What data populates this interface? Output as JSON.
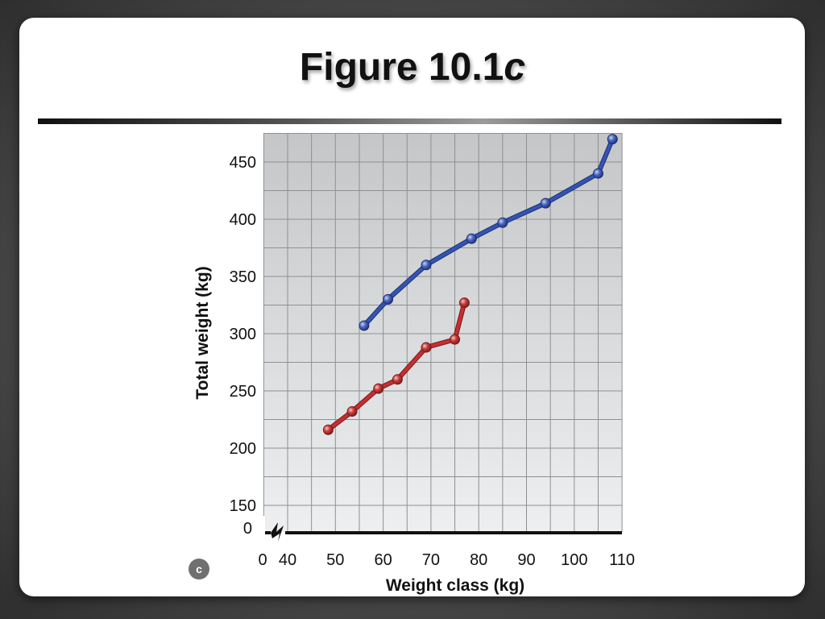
{
  "slide": {
    "title_main": "Figure 10.1",
    "title_italic": "c",
    "panel_label": "c"
  },
  "chart_data": {
    "type": "line",
    "xlabel": "Weight class (kg)",
    "ylabel": "Total weight (kg)",
    "xlim": [
      40,
      110
    ],
    "ylim": [
      150,
      470
    ],
    "x_ticks": [
      40,
      50,
      60,
      70,
      80,
      90,
      100,
      110
    ],
    "y_ticks": [
      150,
      200,
      250,
      300,
      350,
      400,
      450
    ],
    "axis_break_x_label": "0",
    "axis_break_y_label": "0",
    "grid": true,
    "series": [
      {
        "color": "#3355b0",
        "x": [
          56,
          61,
          69,
          78.5,
          85,
          94,
          105,
          108
        ],
        "y": [
          307,
          330,
          360,
          383,
          397,
          414,
          440,
          470
        ]
      },
      {
        "color": "#c43030",
        "x": [
          48.5,
          53.5,
          59,
          63,
          69,
          75,
          77
        ],
        "y": [
          216,
          232,
          252,
          260,
          288,
          295,
          327
        ]
      }
    ]
  }
}
